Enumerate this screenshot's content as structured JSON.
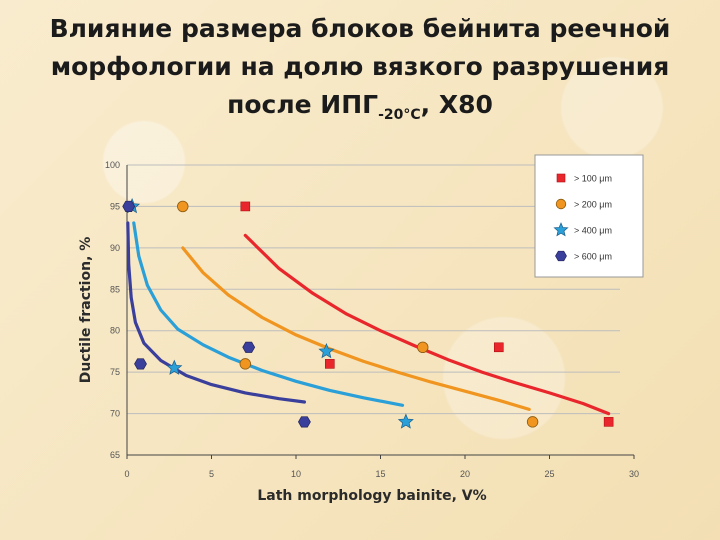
{
  "slide": {
    "title_line1": "Влияние размера блоков бейнита реечной",
    "title_line2": "морфологии на долю вязкого разрушения",
    "title_line3_main": "после ИПГ",
    "title_line3_sub": "-20°C",
    "title_line3_tail": ", Х80"
  },
  "chart_data": {
    "type": "scatter",
    "xlabel": "Lath  morphology bainite, V%",
    "ylabel": "Ductile fraction, %",
    "xlim": [
      0,
      30
    ],
    "ylim": [
      65,
      100
    ],
    "xticks": [
      0,
      5,
      10,
      15,
      20,
      25,
      30
    ],
    "yticks": [
      65,
      70,
      75,
      80,
      85,
      90,
      95,
      100
    ],
    "grid": "horizontal",
    "legend_position": "top-right",
    "series": [
      {
        "name": "> 100 μm",
        "marker": "square",
        "color": "#e8262b",
        "points": [
          [
            7,
            95
          ],
          [
            12,
            76
          ],
          [
            22,
            78
          ],
          [
            28.5,
            69
          ]
        ],
        "curve": [
          [
            7,
            91.5
          ],
          [
            9,
            87.5
          ],
          [
            11,
            84.5
          ],
          [
            13,
            82
          ],
          [
            15,
            80
          ],
          [
            17,
            78.2
          ],
          [
            19,
            76.5
          ],
          [
            21,
            75
          ],
          [
            23,
            73.7
          ],
          [
            25,
            72.5
          ],
          [
            27,
            71.2
          ],
          [
            28.5,
            70
          ]
        ]
      },
      {
        "name": "> 200 μm",
        "marker": "circle",
        "color": "#f0951f",
        "points": [
          [
            3.3,
            95
          ],
          [
            7,
            76
          ],
          [
            17.5,
            78
          ],
          [
            24,
            69
          ]
        ],
        "curve": [
          [
            3.3,
            90
          ],
          [
            4.5,
            87
          ],
          [
            6,
            84.3
          ],
          [
            8,
            81.6
          ],
          [
            10,
            79.5
          ],
          [
            12,
            77.8
          ],
          [
            14,
            76.3
          ],
          [
            16,
            75
          ],
          [
            18,
            73.8
          ],
          [
            20,
            72.7
          ],
          [
            22,
            71.6
          ],
          [
            23.8,
            70.5
          ]
        ]
      },
      {
        "name": "> 400 μm",
        "marker": "star",
        "color": "#2a9fd8",
        "points": [
          [
            0.3,
            95
          ],
          [
            2.8,
            75.5
          ],
          [
            11.8,
            77.5
          ],
          [
            16.5,
            69
          ]
        ],
        "curve": [
          [
            0.4,
            93
          ],
          [
            0.7,
            89
          ],
          [
            1.2,
            85.5
          ],
          [
            2,
            82.5
          ],
          [
            3,
            80.2
          ],
          [
            4.5,
            78.3
          ],
          [
            6,
            76.8
          ],
          [
            8,
            75.2
          ],
          [
            10,
            73.9
          ],
          [
            12,
            72.8
          ],
          [
            14,
            71.9
          ],
          [
            16.3,
            71
          ]
        ]
      },
      {
        "name": "> 600 μm",
        "marker": "hexagon",
        "color": "#3b3f9c",
        "points": [
          [
            0.1,
            95
          ],
          [
            0.8,
            76
          ],
          [
            7.2,
            78
          ],
          [
            10.5,
            69
          ]
        ],
        "curve": [
          [
            0.05,
            93
          ],
          [
            0.1,
            88
          ],
          [
            0.25,
            84
          ],
          [
            0.5,
            81
          ],
          [
            1,
            78.5
          ],
          [
            2,
            76.4
          ],
          [
            3.5,
            74.6
          ],
          [
            5,
            73.5
          ],
          [
            7,
            72.5
          ],
          [
            9,
            71.8
          ],
          [
            10.5,
            71.4
          ]
        ]
      }
    ]
  }
}
